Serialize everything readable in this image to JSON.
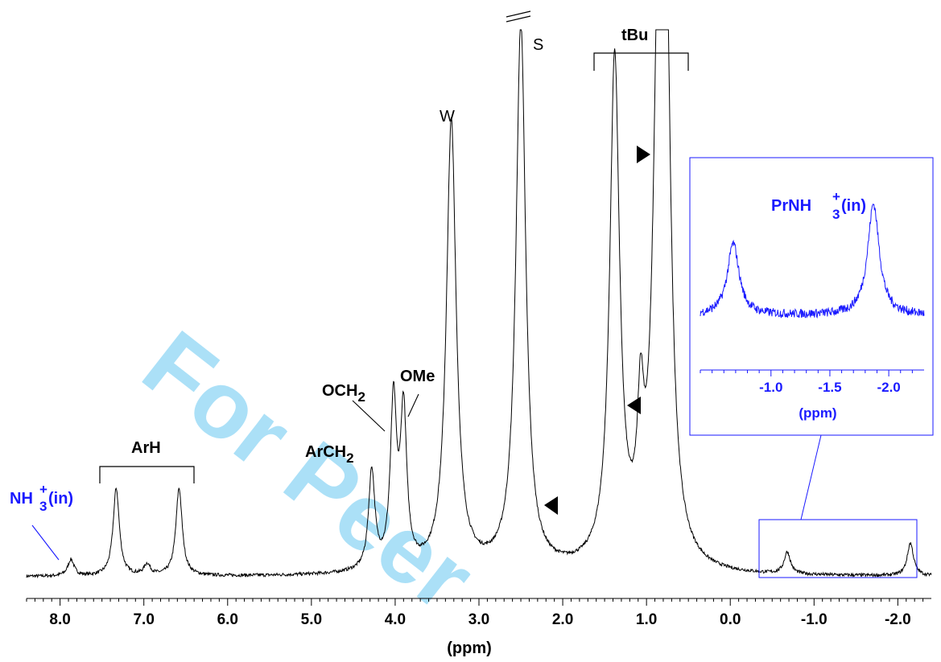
{
  "chart_data": [
    {
      "type": "line",
      "title": "",
      "xlabel": "(ppm)",
      "ylabel": "",
      "xlim": [
        8.4,
        -2.4
      ],
      "x_reversed": true,
      "x_ticks": [
        "8.0",
        "7.0",
        "6.0",
        "5.0",
        "4.0",
        "3.0",
        "2.0",
        "1.0",
        "0.0",
        "-1.0",
        "-2.0"
      ],
      "peaks": [
        {
          "ppm": 7.87,
          "height": 0.03
        },
        {
          "ppm": 7.33,
          "height": 0.16
        },
        {
          "ppm": 6.96,
          "height": 0.02
        },
        {
          "ppm": 6.58,
          "height": 0.16
        },
        {
          "ppm": 4.28,
          "height": 0.18
        },
        {
          "ppm": 4.02,
          "height": 0.3
        },
        {
          "ppm": 3.9,
          "height": 0.28
        },
        {
          "ppm": 3.33,
          "height": 0.82
        },
        {
          "ppm": 2.5,
          "height": 1.0
        },
        {
          "ppm": 1.38,
          "height": 0.92
        },
        {
          "ppm": 1.07,
          "height": 0.22
        },
        {
          "ppm": 0.86,
          "height": 0.84
        },
        {
          "ppm": 0.77,
          "height": 0.93
        },
        {
          "ppm": -0.68,
          "height": 0.04
        },
        {
          "ppm": -2.15,
          "height": 0.06
        }
      ],
      "annotations": {
        "nh3_in": {
          "base": "NH",
          "sub": "3",
          "sup": "+",
          "tail": "(in)"
        },
        "arh": "ArH",
        "arch2": {
          "base": "ArCH",
          "sub": "2"
        },
        "och2": {
          "base": "OCH",
          "sub": "2"
        },
        "ome": "OMe",
        "w": "W",
        "s": "S",
        "tbu": "tBu"
      }
    },
    {
      "type": "line",
      "title": "",
      "xlabel": "(ppm)",
      "xlim": [
        -0.4,
        -2.3
      ],
      "x_reversed": true,
      "x_ticks": [
        "-1.0",
        "-1.5",
        "-2.0"
      ],
      "peaks": [
        {
          "ppm": -0.68,
          "height": 0.4
        },
        {
          "ppm": -1.87,
          "height": 0.62
        }
      ],
      "annotations": {
        "prnh3_in": {
          "base": "PrNH",
          "sub": "3",
          "sup": "+",
          "tail": "(in)"
        }
      }
    }
  ],
  "watermark": "For Peer",
  "colors": {
    "inset": "#1a1aff",
    "trace": "#000000",
    "watermark": "#8fd6f5"
  }
}
